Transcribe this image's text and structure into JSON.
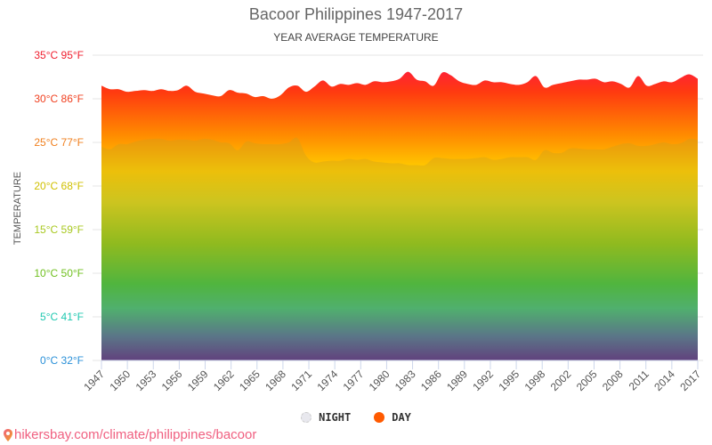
{
  "header": {
    "title": "Bacoor Philippines 1947-2017",
    "subtitle": "YEAR AVERAGE TEMPERATURE"
  },
  "y_axis_title": "TEMPERATURE",
  "legend": {
    "night_label": "NIGHT",
    "day_label": "DAY"
  },
  "footer": {
    "url": "hikersbay.com/climate/philippines/bacoor"
  },
  "colors": {
    "day_top": "#ff2040",
    "orange": "#ff6a00",
    "yellow": "#ffd000",
    "green": "#10c050",
    "teal": "#10b8a0",
    "bottom_blue": "#2a10b0",
    "night_overlay": "#d8b820"
  },
  "chart_data": {
    "type": "area",
    "title": "Bacoor Philippines 1947-2017",
    "subtitle": "YEAR AVERAGE TEMPERATURE",
    "xlabel": "",
    "ylabel": "TEMPERATURE",
    "ylim": [
      0,
      35
    ],
    "y_ticks": [
      "0°C 32°F",
      "5°C 41°F",
      "10°C 50°F",
      "15°C 59°F",
      "20°C 68°F",
      "25°C 77°F",
      "30°C 86°F",
      "35°C 95°F"
    ],
    "y_tick_colors": [
      "#2a90d8",
      "#20c8b0",
      "#70c020",
      "#a8c820",
      "#d0c000",
      "#f08020",
      "#f04020",
      "#f02030"
    ],
    "x_tick_labels": [
      "1947",
      "1950",
      "1953",
      "1956",
      "1959",
      "1962",
      "1965",
      "1968",
      "1971",
      "1974",
      "1977",
      "1980",
      "1983",
      "1986",
      "1989",
      "1992",
      "1995",
      "1998",
      "2002",
      "2005",
      "2008",
      "2011",
      "2014",
      "2017"
    ],
    "x": [
      1947,
      1948,
      1949,
      1950,
      1951,
      1952,
      1953,
      1954,
      1955,
      1956,
      1957,
      1958,
      1959,
      1960,
      1961,
      1962,
      1963,
      1964,
      1965,
      1966,
      1967,
      1968,
      1969,
      1970,
      1971,
      1972,
      1973,
      1974,
      1975,
      1976,
      1977,
      1978,
      1979,
      1980,
      1981,
      1982,
      1983,
      1984,
      1985,
      1986,
      1987,
      1988,
      1989,
      1990,
      1991,
      1992,
      1993,
      1994,
      1995,
      1996,
      1997,
      1998,
      1999,
      2000,
      2001,
      2002,
      2003,
      2004,
      2005,
      2006,
      2007,
      2008,
      2009,
      2010,
      2011,
      2012,
      2013,
      2014,
      2015,
      2016,
      2017
    ],
    "series": [
      {
        "name": "DAY",
        "values": [
          31.5,
          31.1,
          31.1,
          30.8,
          30.9,
          31.0,
          30.9,
          31.1,
          30.9,
          31.0,
          31.5,
          30.8,
          30.6,
          30.4,
          30.3,
          31.0,
          30.7,
          30.6,
          30.2,
          30.3,
          30.0,
          30.4,
          31.3,
          31.5,
          30.8,
          31.4,
          32.1,
          31.4,
          31.7,
          31.6,
          31.8,
          31.6,
          32.0,
          31.9,
          32.0,
          32.3,
          33.1,
          32.2,
          32.0,
          31.5,
          33.0,
          32.7,
          32.0,
          31.7,
          31.6,
          32.1,
          31.9,
          31.9,
          31.7,
          31.6,
          31.9,
          32.6,
          31.3,
          31.6,
          31.8,
          32.0,
          32.2,
          32.2,
          32.3,
          31.9,
          32.0,
          31.7,
          31.3,
          32.6,
          31.5,
          31.7,
          32.0,
          31.9,
          32.4,
          32.8,
          32.3
        ]
      },
      {
        "name": "NIGHT",
        "values": [
          24.5,
          24.2,
          24.8,
          24.8,
          25.1,
          25.3,
          25.4,
          25.4,
          25.2,
          25.3,
          25.3,
          25.2,
          25.4,
          25.3,
          25.0,
          24.9,
          24.1,
          25.1,
          24.9,
          24.8,
          24.8,
          24.8,
          25.0,
          25.5,
          23.5,
          22.7,
          22.8,
          22.9,
          22.9,
          23.1,
          23.0,
          23.1,
          22.8,
          22.7,
          22.6,
          22.6,
          22.4,
          22.4,
          22.4,
          23.2,
          23.2,
          23.1,
          23.1,
          23.1,
          23.2,
          23.3,
          23.0,
          23.1,
          23.3,
          23.3,
          23.3,
          23.0,
          24.1,
          23.8,
          23.8,
          24.3,
          24.3,
          24.2,
          24.2,
          24.2,
          24.5,
          24.8,
          24.9,
          24.6,
          24.6,
          24.8,
          25.0,
          24.8,
          24.9,
          25.4,
          25.3
        ]
      }
    ],
    "legend_position": "bottom",
    "grid": true
  }
}
